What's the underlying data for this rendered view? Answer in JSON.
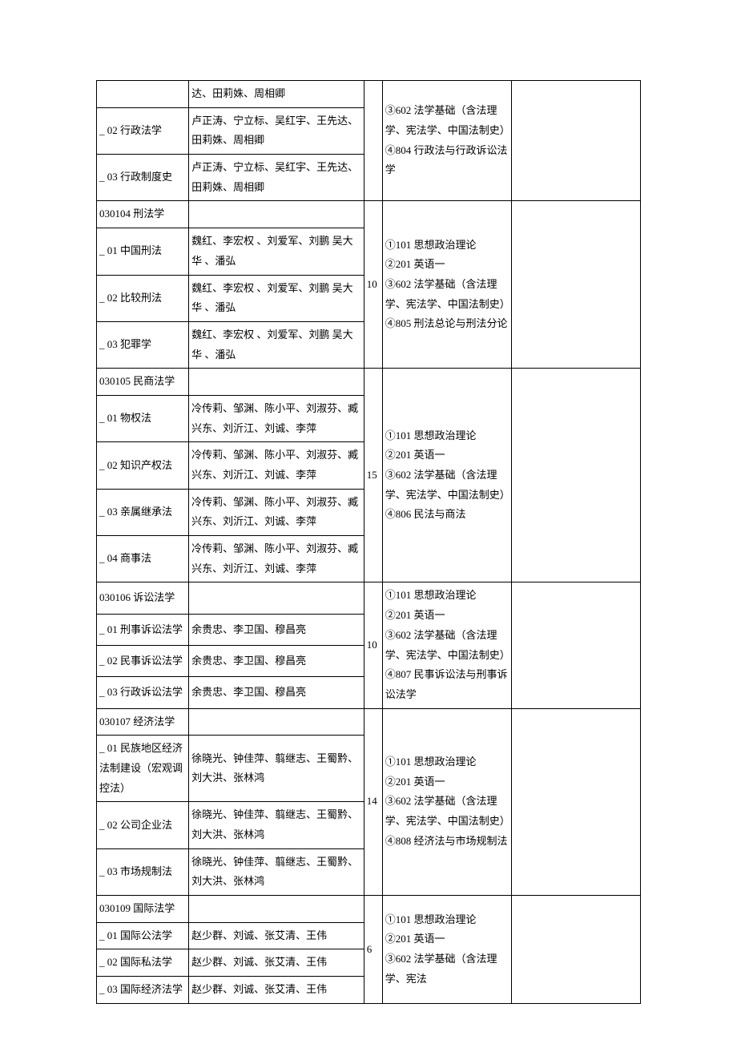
{
  "table": {
    "col_widths": {
      "code": 100,
      "instr": 190,
      "num": 20,
      "exam": 140,
      "note": 140
    },
    "border_color": "#000000",
    "font_size": 13,
    "line_height": 1.9,
    "groups": [
      {
        "exam": "③602 法学基础（含法理学、宪法学、中国法制史）④804 行政法与行政诉讼法学",
        "rows": [
          {
            "code": "",
            "instr": "达、田莉姝、周相卿"
          },
          {
            "code": "_ 02 行政法学",
            "instr": "卢正涛、宁立标、吴红宇、王先达、田莉姝、周相卿"
          },
          {
            "code": "_ 03 行政制度史",
            "instr": "卢正涛、宁立标、吴红宇、王先达、田莉姝、周相卿"
          }
        ],
        "num": ""
      },
      {
        "exam": "①101 思想政治理论\n②201 英语一\n③602 法学基础（含法理学、宪法学、中国法制史）④805 刑法总论与刑法分论",
        "rows": [
          {
            "code": "030104 刑法学",
            "instr": ""
          },
          {
            "code": "_ 01 中国刑法",
            "instr": "魏红、李宏权 、刘爱军、刘鹏 吴大华 、潘弘"
          },
          {
            "code": "_ 02 比较刑法",
            "instr": "魏红、李宏权 、刘爱军、刘鹏 吴大华 、潘弘"
          },
          {
            "code": "_ 03 犯罪学",
            "instr": "魏红、李宏权 、刘爱军、刘鹏 吴大华 、潘弘"
          }
        ],
        "num": "10"
      },
      {
        "exam": "①101 思想政治理论\n②201 英语一\n③602 法学基础（含法理学、宪法学、中国法制史）④806 民法与商法",
        "rows": [
          {
            "code": "030105 民商法学",
            "instr": ""
          },
          {
            "code": "_ 01 物权法",
            "instr": "冷传莉、邹渊、陈小平、刘淑芬、臧兴东、刘沂江、刘诚、李萍"
          },
          {
            "code": "_ 02 知识产权法",
            "instr": "冷传莉、邹渊、陈小平、刘淑芬、臧兴东、刘沂江、刘诚、李萍"
          },
          {
            "code": "_ 03 亲属继承法",
            "instr": "冷传莉、邹渊、陈小平、刘淑芬、臧兴东、刘沂江、刘诚、李萍"
          },
          {
            "code": "_ 04 商事法",
            "instr": "冷传莉、邹渊、陈小平、刘淑芬、臧兴东、刘沂江、刘诚、李萍"
          }
        ],
        "num": "15"
      },
      {
        "exam": "①101 思想政治理论\n②201 英语一\n③602 法学基础（含法理学、宪法学、中国法制史）④807 民事诉讼法与刑事诉讼法学",
        "rows": [
          {
            "code": "030106 诉讼法学",
            "instr": ""
          },
          {
            "code": "_ 01 刑事诉讼法学",
            "instr": "余贵忠、李卫国、穆昌亮"
          },
          {
            "code": "_ 02 民事诉讼法学",
            "instr": "余贵忠、李卫国、穆昌亮"
          },
          {
            "code": "_ 03 行政诉讼法学",
            "instr": "余贵忠、李卫国、穆昌亮"
          }
        ],
        "num": "10"
      },
      {
        "exam": "①101 思想政治理论\n②201 英语一\n③602 法学基础（含法理学、宪法学、中国法制史）④808 经济法与市场规制法",
        "rows": [
          {
            "code": "030107 经济法学",
            "instr": ""
          },
          {
            "code": "_ 01 民族地区经济法制建设（宏观调控法）",
            "instr": "徐晓光、钟佳萍、翦继志、王蜀黔、刘大洪、张林鸿"
          },
          {
            "code": "_ 02 公司企业法",
            "instr": "徐晓光、钟佳萍、翦继志、王蜀黔、刘大洪、张林鸿"
          },
          {
            "code": "_ 03 市场规制法",
            "instr": "徐晓光、钟佳萍、翦继志、王蜀黔、刘大洪、张林鸿"
          }
        ],
        "num": "14"
      },
      {
        "exam": "①101 思想政治理论\n②201 英语一\n③602 法学基础（含法理学、宪法",
        "rows": [
          {
            "code": "030109 国际法学",
            "instr": ""
          },
          {
            "code": "_ 01 国际公法学",
            "instr": "赵少群、刘诚、张艾清、王伟"
          },
          {
            "code": "_ 02 国际私法学",
            "instr": "赵少群、刘诚、张艾清、王伟"
          },
          {
            "code": "_ 03 国际经济法学",
            "instr": "赵少群、刘诚、张艾清、王伟"
          }
        ],
        "num": "6"
      }
    ]
  }
}
